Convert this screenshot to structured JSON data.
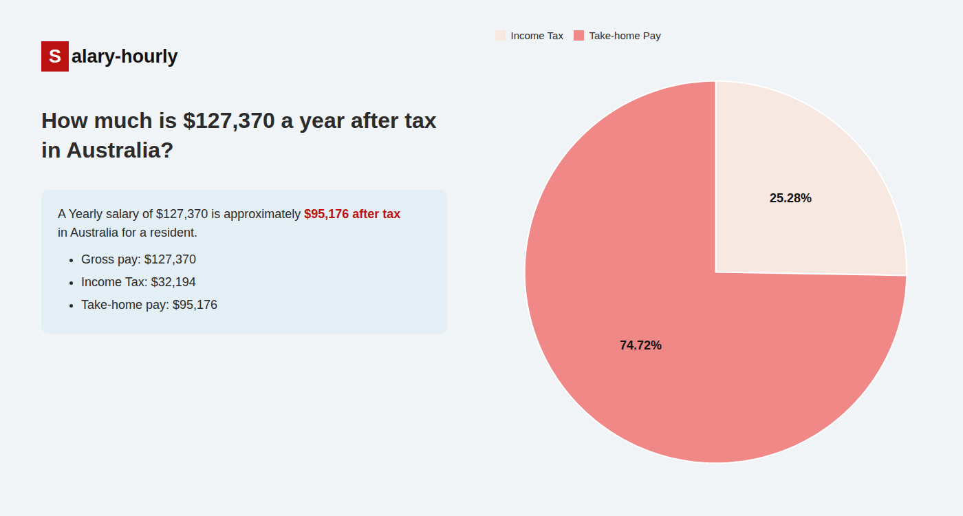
{
  "chart_data": {
    "type": "pie",
    "title": "How much is $127,370 a year after tax in Australia?",
    "categories": [
      "Income Tax",
      "Take-home Pay"
    ],
    "values": [
      25.28,
      74.72
    ],
    "value_labels": [
      "25.28%",
      "74.72%"
    ],
    "data_labels": true,
    "colors": [
      "#f7e8e2",
      "#f08888"
    ],
    "legend": "top",
    "annotations": [
      "S",
      "alary-hourly",
      "A Yearly salary of $127,370 is approximately ",
      "$95,176 after tax",
      "in Australia for a resident.",
      "Gross pay: $127,370",
      "Income Tax: $32,194",
      "Take-home pay: $95,176"
    ]
  }
}
